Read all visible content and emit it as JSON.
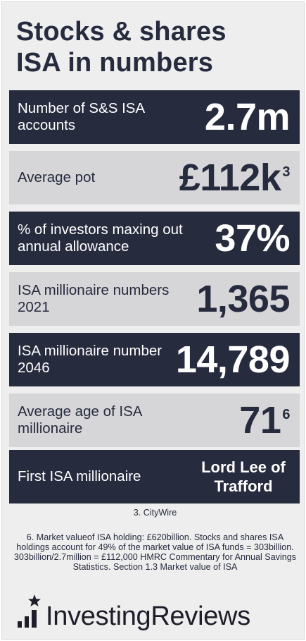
{
  "title": {
    "line1": "Stocks & shares",
    "line2": "ISA in numbers"
  },
  "colors": {
    "navy": "#262b3e",
    "light_row": "#d6d6d8",
    "background": "#eeeeee"
  },
  "stats": [
    {
      "label": "Number of S&S ISA accounts",
      "value": "2.7m",
      "sup": "",
      "style": "dark"
    },
    {
      "label": "Average pot",
      "value": "£112k",
      "sup": "3",
      "style": "light"
    },
    {
      "label": "% of investors maxing out annual allowance",
      "value": "37%",
      "sup": "",
      "style": "dark"
    },
    {
      "label": "ISA millionaire numbers 2021",
      "value": "1,365",
      "sup": "",
      "style": "light"
    },
    {
      "label": "ISA millionaire number 2046",
      "value": "14,789",
      "sup": "",
      "style": "dark"
    },
    {
      "label": "Average age of ISA millionaire",
      "value": "71",
      "sup": "6",
      "style": "light"
    },
    {
      "label": "First ISA millionaire",
      "value": "Lord Lee of Trafford",
      "sup": "",
      "style": "dark"
    }
  ],
  "footnotes": {
    "note3": "3. CityWire",
    "note6": "6. Market valueof ISA holding: £620billion. Stocks and shares ISA holdings account for 49% of the market value of ISA funds = 303billion. 303billion/2.7million = £112,000 HMRC Commentary for Annual Savings Statistics. Section 1.3 Market value of ISA"
  },
  "brand": {
    "name": "InvestingReviews",
    "icon": "bar-chart-star-icon"
  }
}
